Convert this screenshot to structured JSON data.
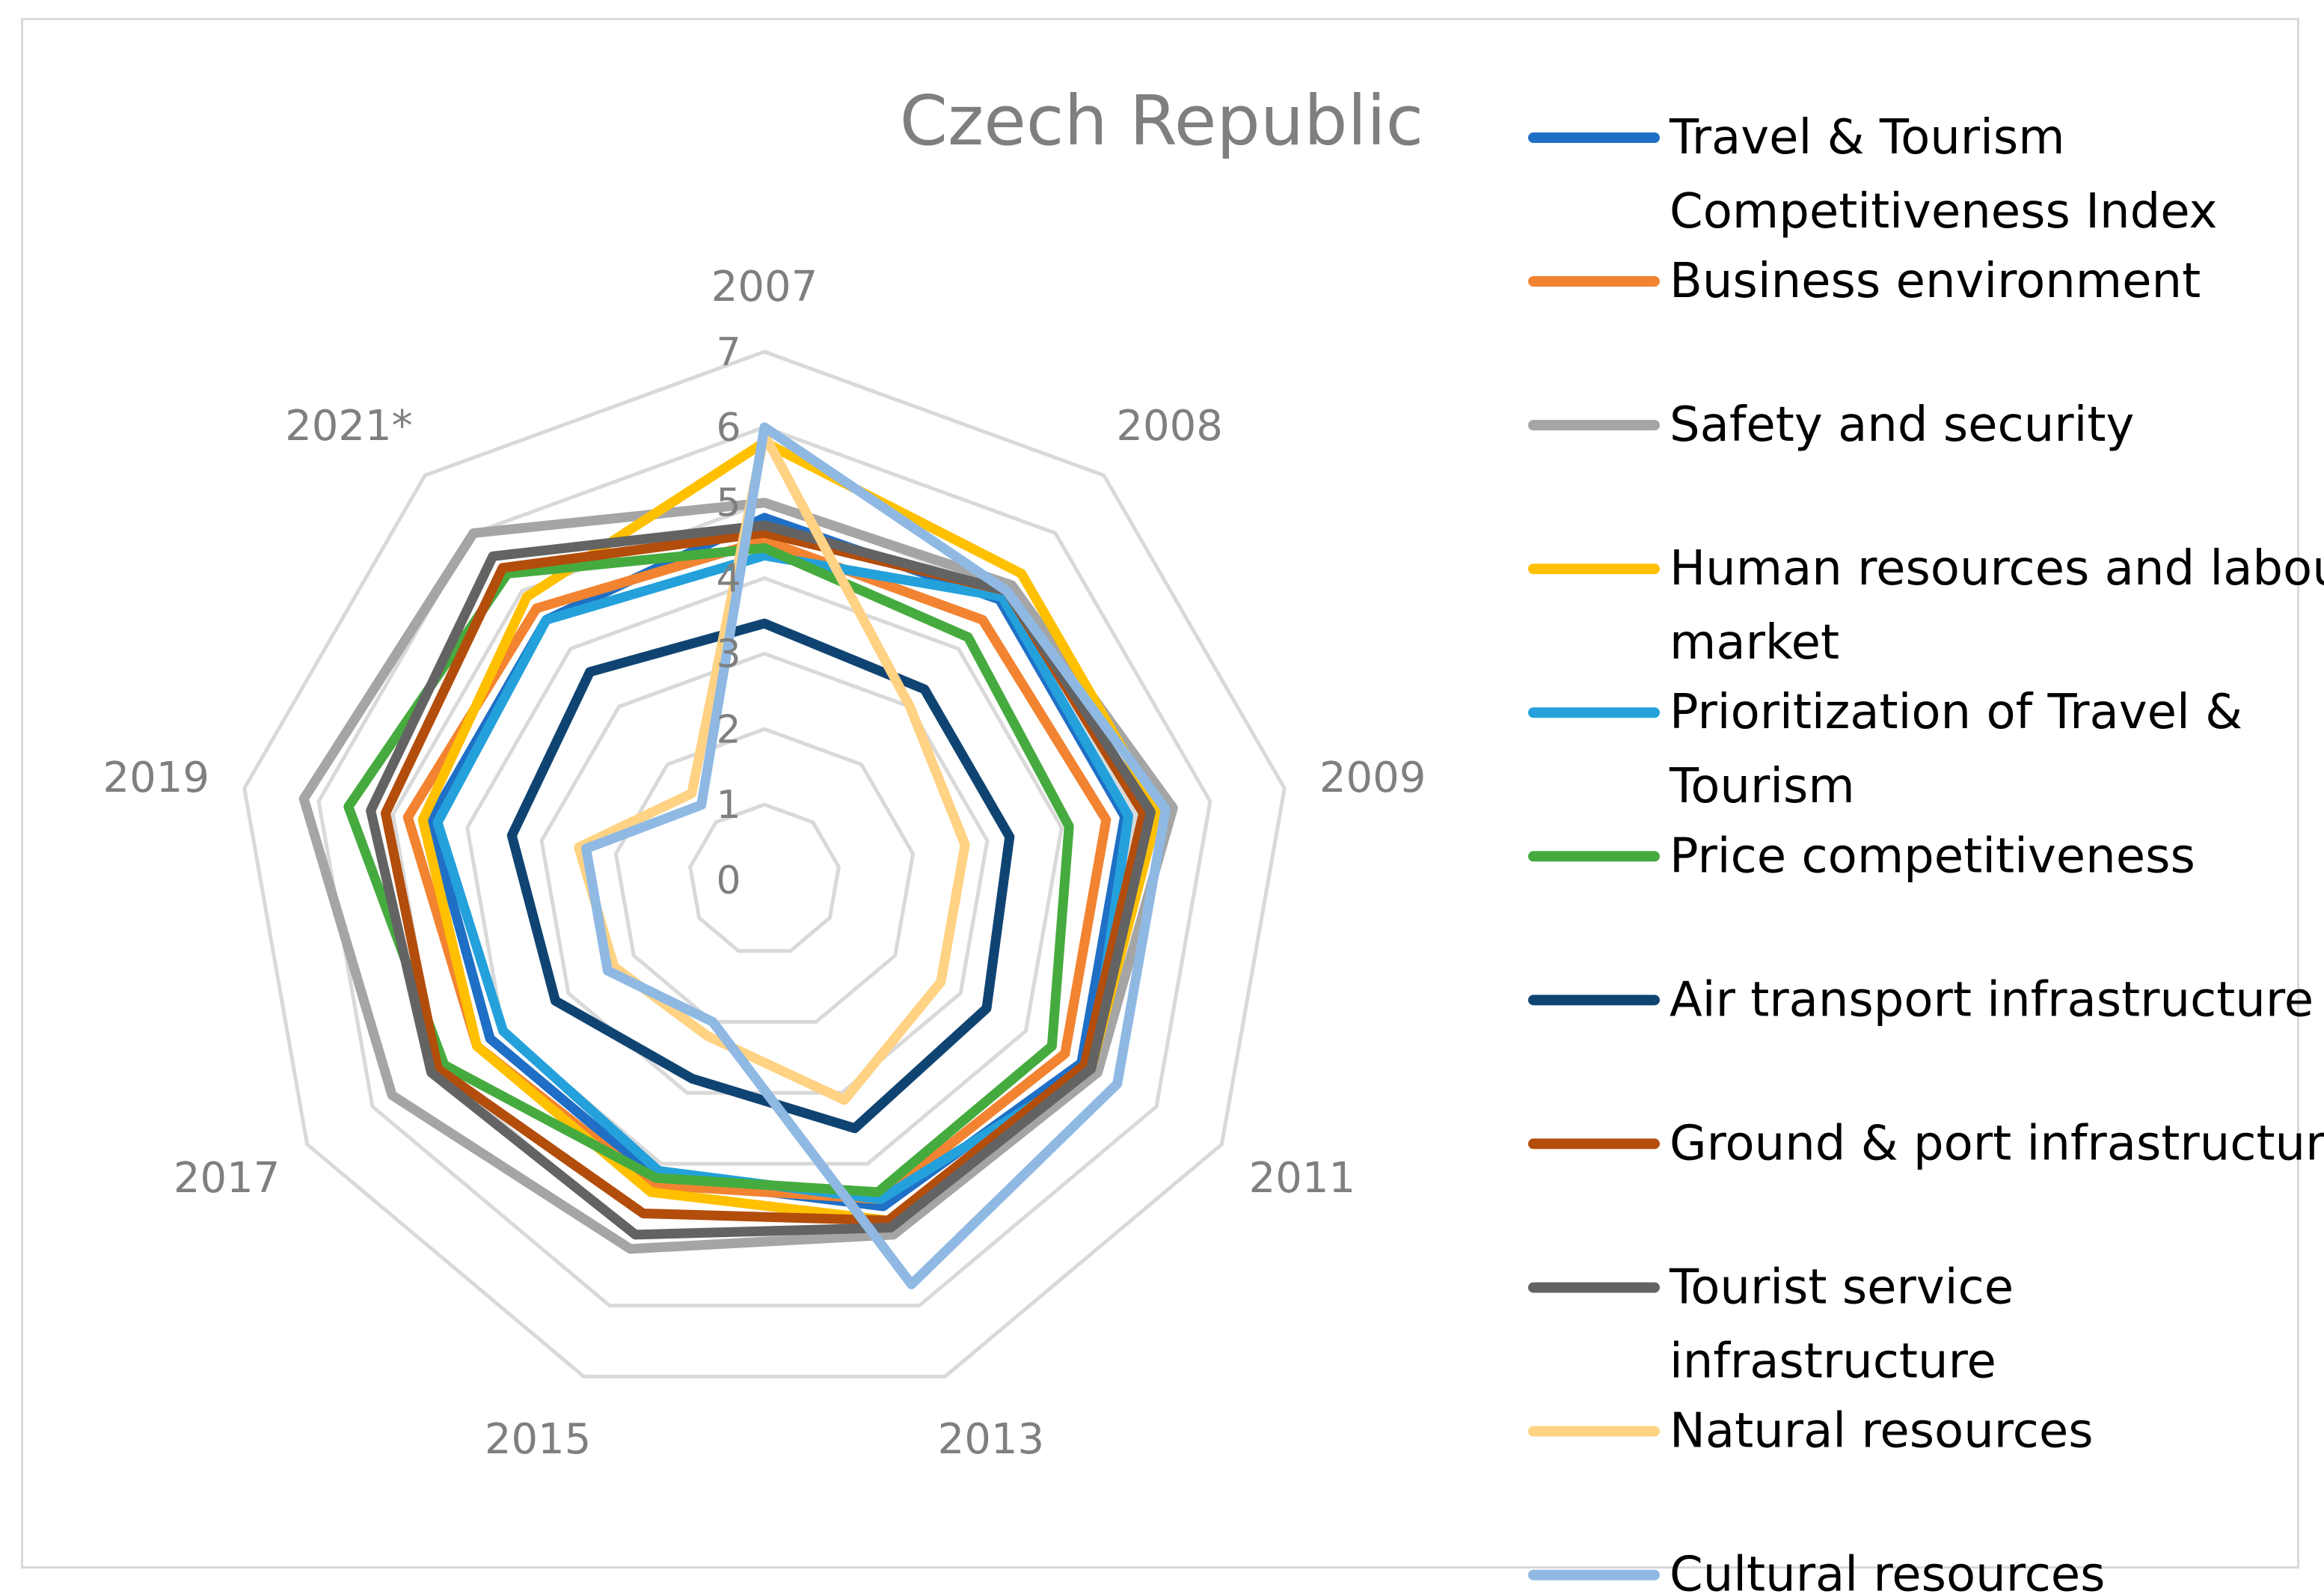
{
  "chart_data": {
    "type": "radar",
    "title": "Czech Republic",
    "categories": [
      "2007",
      "2008",
      "2009",
      "2011",
      "2013",
      "2015",
      "2017",
      "2019",
      "2021*"
    ],
    "rlim": [
      0,
      7
    ],
    "ticks": [
      "0",
      "1",
      "2",
      "3",
      "4",
      "5",
      "6",
      "7"
    ],
    "grid": true,
    "legend_position": "right",
    "series": [
      {
        "name": "Travel & Tourism Competitiveness Index",
        "color": "#1f6fc6",
        "values": [
          4.8,
          4.85,
          4.85,
          4.85,
          4.6,
          4.2,
          4.2,
          4.5,
          4.5
        ]
      },
      {
        "name": "Business environment",
        "color": "#f28331",
        "values": [
          4.5,
          4.5,
          4.6,
          4.6,
          4.5,
          4.3,
          4.4,
          4.8,
          4.7
        ]
      },
      {
        "name": "Safety and security",
        "color": "#a5a5a5",
        "values": [
          5.0,
          5.1,
          5.5,
          5.1,
          5.0,
          5.2,
          5.7,
          6.2,
          6.0
        ]
      },
      {
        "name": "Human resources and labour market",
        "color": "#ffc000",
        "values": [
          5.8,
          5.3,
          5.3,
          5.0,
          4.8,
          4.4,
          4.4,
          4.6,
          4.9
        ]
      },
      {
        "name": "Prioritization of Travel & Tourism",
        "color": "#24a1db",
        "values": [
          4.3,
          4.9,
          4.9,
          5.0,
          4.5,
          4.1,
          4.0,
          4.4,
          4.5
        ]
      },
      {
        "name": "Price competitiveness",
        "color": "#46ab3f",
        "values": [
          4.4,
          4.2,
          4.1,
          4.4,
          4.4,
          4.2,
          4.9,
          5.6,
          5.3
        ]
      },
      {
        "name": "Air transport infrastructure",
        "color": "#0f4472",
        "values": [
          3.4,
          3.3,
          3.3,
          3.4,
          3.5,
          2.8,
          3.2,
          3.4,
          3.6
        ]
      },
      {
        "name": "Ground & port infrastructure",
        "color": "#b34d0b",
        "values": [
          4.6,
          5.0,
          5.1,
          4.9,
          4.8,
          4.7,
          5.0,
          5.1,
          5.4
        ]
      },
      {
        "name": "Tourist service infrastructure",
        "color": "#636363",
        "values": [
          4.7,
          5.0,
          5.2,
          5.0,
          4.9,
          5.0,
          5.1,
          5.3,
          5.6
        ]
      },
      {
        "name": "Natural resources",
        "color": "#ffd284",
        "values": [
          5.9,
          3.0,
          2.7,
          2.7,
          3.1,
          2.2,
          2.3,
          2.5,
          1.5
        ]
      },
      {
        "name": "Cultural resources",
        "color": "#8fb9e3",
        "values": [
          6.0,
          5.0,
          5.4,
          5.4,
          5.7,
          2.0,
          2.4,
          2.4,
          1.3
        ]
      }
    ]
  }
}
